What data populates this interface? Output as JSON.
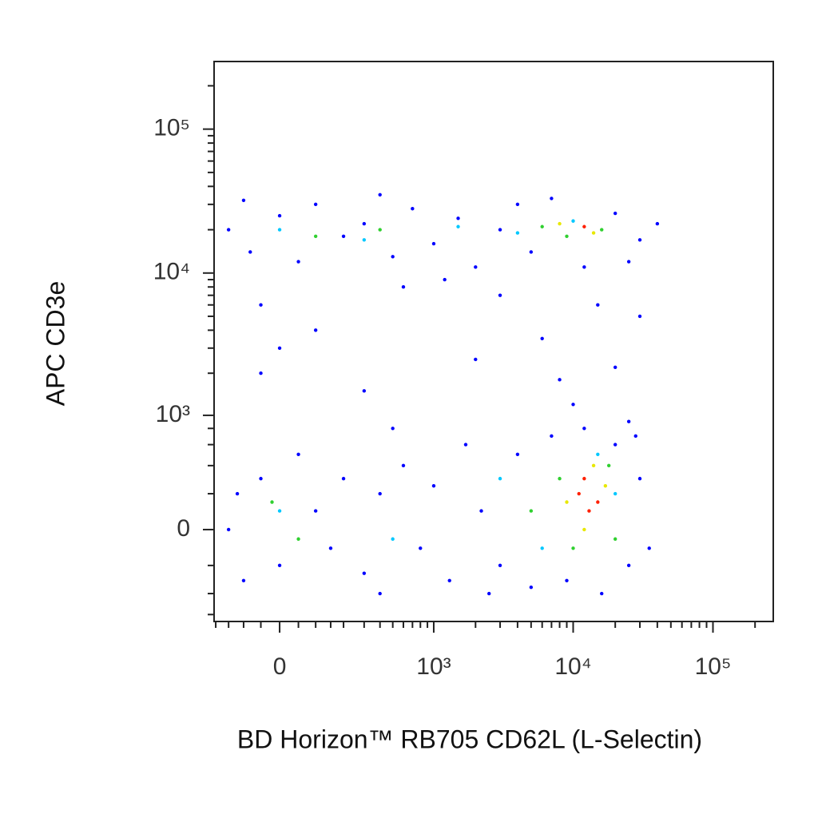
{
  "chart_data": {
    "type": "scatter",
    "x_label": "BD Horizon™ RB705 CD62L (L-Selectin)",
    "y_label": "APC CD3e",
    "xscale": {
      "type": "biexponential",
      "width": 159
    },
    "yscale": {
      "type": "biexponential",
      "width": 330
    },
    "xlim": [
      -207,
      270000
    ],
    "ylim": [
      -680,
      295000
    ],
    "xticks": [
      0,
      {
        "value": 1000,
        "label": "10³"
      },
      {
        "value": 10000,
        "label": "10⁴"
      },
      {
        "value": 100000,
        "label": "10⁵"
      }
    ],
    "yticks": [
      0,
      {
        "value": 1000,
        "label": "10³"
      },
      {
        "value": 10000,
        "label": "10⁴"
      },
      {
        "value": 100000,
        "label": "10⁵"
      }
    ],
    "xminorticks": [
      -200,
      -150,
      -100,
      -50,
      50,
      100,
      150,
      200,
      300,
      400,
      500,
      600,
      700,
      800,
      900,
      2000,
      3000,
      4000,
      5000,
      6000,
      7000,
      8000,
      9000,
      20000,
      30000,
      40000,
      50000,
      60000,
      70000,
      80000,
      90000,
      200000
    ],
    "yminorticks": [
      -600,
      -400,
      -200,
      200,
      400,
      600,
      800,
      2000,
      3000,
      4000,
      5000,
      6000,
      7000,
      8000,
      9000,
      20000,
      30000,
      40000,
      50000,
      60000,
      70000,
      80000,
      90000,
      200000
    ],
    "series": [
      {
        "color": "#0000ff",
        "x": [
          -150,
          -80,
          0,
          50,
          100,
          200,
          300,
          500,
          700,
          1000,
          1500,
          2000,
          3000,
          4000,
          5000,
          7000,
          12000,
          20000,
          30000,
          40000,
          25000,
          -100,
          400,
          1200,
          600,
          -50,
          0,
          100,
          3000,
          15000,
          30000,
          -50,
          300,
          2000,
          8000,
          20000,
          500,
          10000,
          25000,
          6000,
          -150,
          -100,
          -50,
          0,
          50,
          100,
          150,
          200,
          300,
          400,
          600,
          800,
          1000,
          1300,
          1700,
          2200,
          3000,
          4000,
          5000,
          7000,
          9000,
          12000,
          16000,
          20000,
          25000,
          30000,
          28000,
          -120,
          400,
          2500,
          35000
        ],
        "values": [
          20000,
          14000,
          25000,
          12000,
          30000,
          18000,
          22000,
          13000,
          28000,
          16000,
          24000,
          11000,
          20000,
          30000,
          14000,
          33000,
          11000,
          26000,
          17000,
          22000,
          12000,
          32000,
          35000,
          9000,
          8000,
          6000,
          3000,
          4000,
          7000,
          6000,
          5000,
          2000,
          1500,
          2500,
          1800,
          2200,
          800,
          1200,
          900,
          3500,
          0,
          -300,
          300,
          -200,
          500,
          100,
          -100,
          300,
          -250,
          200,
          400,
          -100,
          250,
          -300,
          600,
          100,
          -200,
          500,
          -350,
          700,
          -300,
          800,
          -400,
          600,
          -200,
          300,
          700,
          200,
          -400,
          -400,
          -100
        ]
      },
      {
        "color": "#00c8ff",
        "x": [
          0,
          300,
          1500,
          4000,
          10000,
          0,
          500,
          3000,
          6000,
          20000,
          15000
        ],
        "values": [
          20000,
          17000,
          21000,
          19000,
          23000,
          100,
          -50,
          300,
          -100,
          200,
          500
        ]
      },
      {
        "color": "#30d030",
        "x": [
          100,
          400,
          6000,
          9000,
          16000,
          -20,
          50,
          5000,
          8000,
          10000,
          20000,
          18000
        ],
        "values": [
          18000,
          20000,
          21000,
          18000,
          20000,
          150,
          -50,
          100,
          300,
          -100,
          -50,
          400
        ]
      },
      {
        "color": "#e8e800",
        "x": [
          8000,
          14000,
          9000,
          12000,
          17000,
          14000
        ],
        "values": [
          22000,
          19000,
          150,
          0,
          250,
          400
        ]
      },
      {
        "color": "#ff2000",
        "x": [
          12000,
          11000,
          13000,
          15000,
          12000
        ],
        "values": [
          21000,
          200,
          100,
          150,
          300
        ]
      }
    ]
  }
}
